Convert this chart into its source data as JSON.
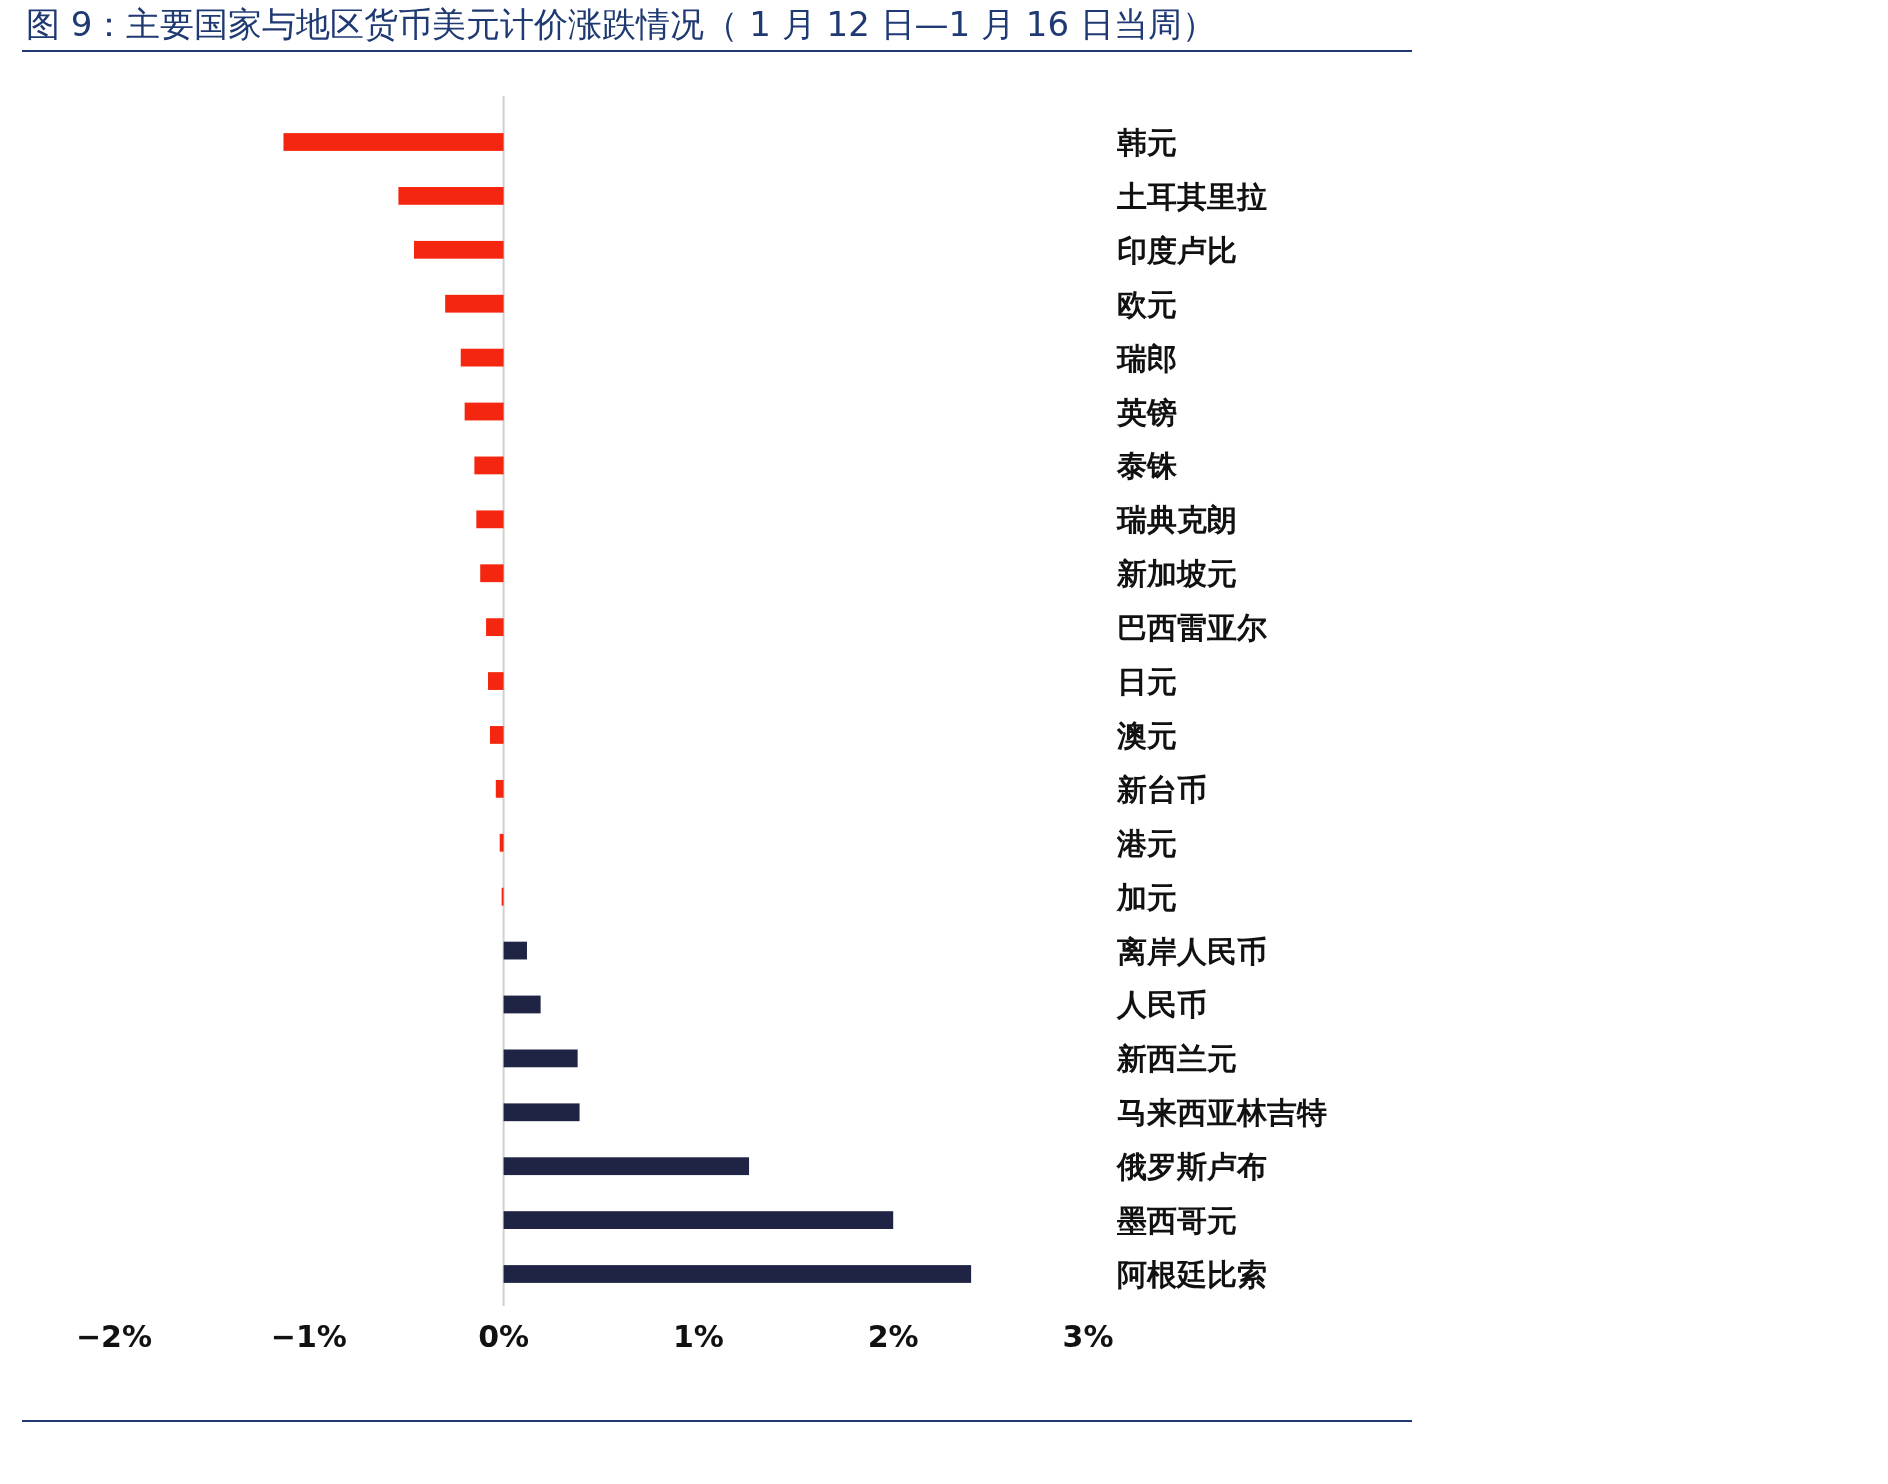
{
  "chart_data": {
    "type": "bar",
    "orientation": "horizontal",
    "title": "图 9：主要国家与地区货币美元计价涨跌情况（ 1 月 12 日—1 月 16 日当周）",
    "categories": [
      "韩元",
      "土耳其里拉",
      "印度卢比",
      "欧元",
      "瑞郎",
      "英镑",
      "泰铢",
      "瑞典克朗",
      "新加坡元",
      "巴西雷亚尔",
      "日元",
      "澳元",
      "新台币",
      "港元",
      "加元",
      "离岸人民币",
      "人民币",
      "新西兰元",
      "马来西亚林吉特",
      "俄罗斯卢布",
      "墨西哥元",
      "阿根廷比索"
    ],
    "values": [
      -1.13,
      -0.54,
      -0.46,
      -0.3,
      -0.22,
      -0.2,
      -0.15,
      -0.14,
      -0.12,
      -0.09,
      -0.08,
      -0.07,
      -0.04,
      -0.02,
      -0.01,
      0.12,
      0.19,
      0.38,
      0.39,
      1.26,
      2.0,
      2.4
    ],
    "colors": [
      "#f5260f",
      "#f5260f",
      "#f5260f",
      "#f5260f",
      "#f5260f",
      "#f5260f",
      "#f5260f",
      "#f5260f",
      "#f5260f",
      "#f5260f",
      "#f5260f",
      "#f5260f",
      "#f5260f",
      "#f5260f",
      "#f5260f",
      "#1f2444",
      "#1f2444",
      "#1f2444",
      "#1f2444",
      "#1f2444",
      "#1f2444",
      "#1f2444"
    ],
    "xlim": [
      -2,
      3
    ],
    "xticks": [
      {
        "value": -2,
        "label": "−2%"
      },
      {
        "value": -1,
        "label": "−1%"
      },
      {
        "value": 0,
        "label": "0%"
      },
      {
        "value": 1,
        "label": "1%"
      },
      {
        "value": 2,
        "label": "2%"
      },
      {
        "value": 3,
        "label": "3%"
      }
    ],
    "legend": false
  }
}
